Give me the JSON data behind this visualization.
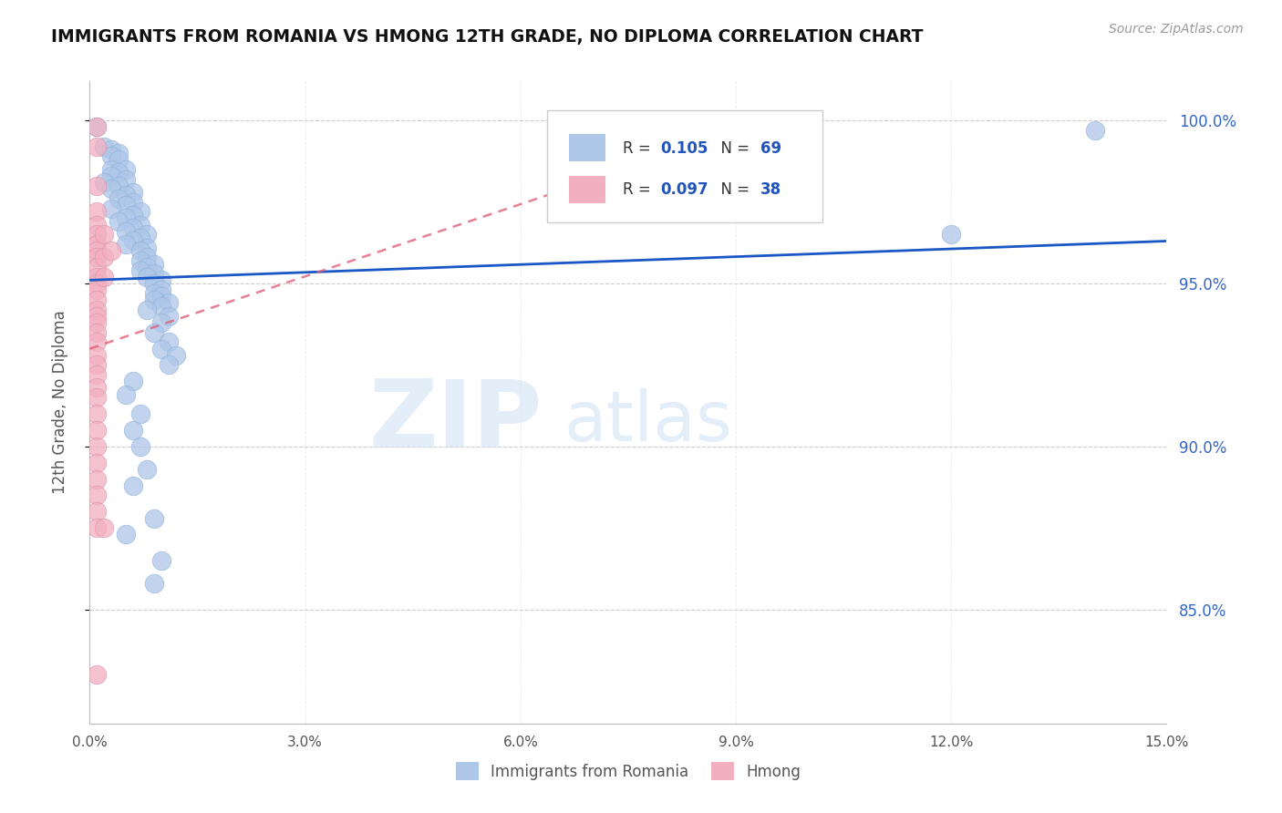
{
  "title": "IMMIGRANTS FROM ROMANIA VS HMONG 12TH GRADE, NO DIPLOMA CORRELATION CHART",
  "source": "Source: ZipAtlas.com",
  "ylabel": "12th Grade, No Diploma",
  "watermark_zip": "ZIP",
  "watermark_atlas": "atlas",
  "legend_romania": {
    "R": "0.105",
    "N": "69"
  },
  "legend_hmong": {
    "R": "0.097",
    "N": "38"
  },
  "romania_color": "#aec6e8",
  "hmong_color": "#f2afc0",
  "trendline_romania_color": "#1a56c4",
  "trendline_hmong_color": "#e0607a",
  "xlim": [
    0.0,
    0.15
  ],
  "ylim": [
    0.815,
    1.012
  ],
  "yticks": [
    0.85,
    0.9,
    0.95,
    1.0
  ],
  "xticks": [
    0.0,
    0.03,
    0.06,
    0.09,
    0.12,
    0.15
  ],
  "xtick_labels": [
    "0.0%",
    "3.0%",
    "6.0%",
    "9.0%",
    "12.0%",
    "15.0%"
  ],
  "romania_scatter": [
    [
      0.001,
      0.998
    ],
    [
      0.002,
      0.992
    ],
    [
      0.003,
      0.991
    ],
    [
      0.004,
      0.99
    ],
    [
      0.003,
      0.989
    ],
    [
      0.004,
      0.988
    ],
    [
      0.003,
      0.985
    ],
    [
      0.005,
      0.985
    ],
    [
      0.004,
      0.984
    ],
    [
      0.003,
      0.983
    ],
    [
      0.005,
      0.982
    ],
    [
      0.002,
      0.981
    ],
    [
      0.004,
      0.98
    ],
    [
      0.003,
      0.979
    ],
    [
      0.006,
      0.978
    ],
    [
      0.005,
      0.977
    ],
    [
      0.004,
      0.976
    ],
    [
      0.006,
      0.975
    ],
    [
      0.005,
      0.974
    ],
    [
      0.003,
      0.973
    ],
    [
      0.007,
      0.972
    ],
    [
      0.006,
      0.971
    ],
    [
      0.005,
      0.97
    ],
    [
      0.004,
      0.969
    ],
    [
      0.007,
      0.968
    ],
    [
      0.006,
      0.967
    ],
    [
      0.005,
      0.966
    ],
    [
      0.008,
      0.965
    ],
    [
      0.007,
      0.964
    ],
    [
      0.006,
      0.963
    ],
    [
      0.005,
      0.962
    ],
    [
      0.008,
      0.961
    ],
    [
      0.007,
      0.96
    ],
    [
      0.008,
      0.958
    ],
    [
      0.007,
      0.957
    ],
    [
      0.009,
      0.956
    ],
    [
      0.008,
      0.955
    ],
    [
      0.007,
      0.954
    ],
    [
      0.009,
      0.953
    ],
    [
      0.008,
      0.952
    ],
    [
      0.01,
      0.951
    ],
    [
      0.009,
      0.95
    ],
    [
      0.01,
      0.948
    ],
    [
      0.009,
      0.947
    ],
    [
      0.01,
      0.946
    ],
    [
      0.009,
      0.945
    ],
    [
      0.011,
      0.944
    ],
    [
      0.01,
      0.943
    ],
    [
      0.008,
      0.942
    ],
    [
      0.011,
      0.94
    ],
    [
      0.01,
      0.938
    ],
    [
      0.009,
      0.935
    ],
    [
      0.011,
      0.932
    ],
    [
      0.01,
      0.93
    ],
    [
      0.012,
      0.928
    ],
    [
      0.011,
      0.925
    ],
    [
      0.006,
      0.92
    ],
    [
      0.005,
      0.916
    ],
    [
      0.007,
      0.91
    ],
    [
      0.006,
      0.905
    ],
    [
      0.007,
      0.9
    ],
    [
      0.008,
      0.893
    ],
    [
      0.006,
      0.888
    ],
    [
      0.009,
      0.878
    ],
    [
      0.005,
      0.873
    ],
    [
      0.01,
      0.865
    ],
    [
      0.009,
      0.858
    ],
    [
      0.14,
      0.997
    ],
    [
      0.12,
      0.965
    ]
  ],
  "hmong_scatter": [
    [
      0.001,
      0.998
    ],
    [
      0.001,
      0.992
    ],
    [
      0.001,
      0.98
    ],
    [
      0.001,
      0.972
    ],
    [
      0.001,
      0.968
    ],
    [
      0.001,
      0.965
    ],
    [
      0.001,
      0.962
    ],
    [
      0.001,
      0.96
    ],
    [
      0.001,
      0.958
    ],
    [
      0.001,
      0.955
    ],
    [
      0.001,
      0.952
    ],
    [
      0.001,
      0.95
    ],
    [
      0.001,
      0.948
    ],
    [
      0.001,
      0.945
    ],
    [
      0.001,
      0.942
    ],
    [
      0.001,
      0.94
    ],
    [
      0.001,
      0.938
    ],
    [
      0.001,
      0.935
    ],
    [
      0.001,
      0.932
    ],
    [
      0.001,
      0.928
    ],
    [
      0.001,
      0.925
    ],
    [
      0.001,
      0.922
    ],
    [
      0.001,
      0.918
    ],
    [
      0.001,
      0.915
    ],
    [
      0.001,
      0.91
    ],
    [
      0.001,
      0.905
    ],
    [
      0.001,
      0.9
    ],
    [
      0.001,
      0.895
    ],
    [
      0.001,
      0.89
    ],
    [
      0.001,
      0.885
    ],
    [
      0.001,
      0.88
    ],
    [
      0.001,
      0.875
    ],
    [
      0.002,
      0.965
    ],
    [
      0.002,
      0.958
    ],
    [
      0.002,
      0.952
    ],
    [
      0.002,
      0.875
    ],
    [
      0.003,
      0.96
    ],
    [
      0.001,
      0.83
    ]
  ],
  "trendline_romania": [
    [
      0.0,
      0.951
    ],
    [
      0.15,
      0.963
    ]
  ],
  "trendline_hmong": [
    [
      0.0,
      0.93
    ],
    [
      0.065,
      0.978
    ]
  ]
}
